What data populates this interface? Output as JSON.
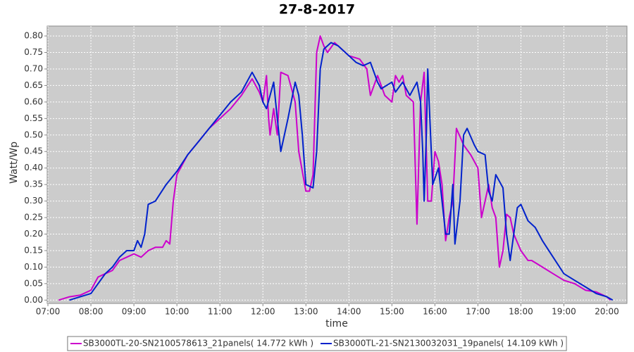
{
  "chart_data": {
    "type": "line",
    "title": "27-8-2017",
    "x_label": "time",
    "y_label": "Watt/Wp",
    "xlim": [
      419,
      1228
    ],
    "ylim": [
      -0.01,
      0.83
    ],
    "grid": true,
    "legend": "bottom",
    "background": "#cccccc",
    "xticks": [
      {
        "value": 420,
        "label": "07:00"
      },
      {
        "value": 480,
        "label": "08:00"
      },
      {
        "value": 540,
        "label": "09:00"
      },
      {
        "value": 600,
        "label": "10:00"
      },
      {
        "value": 660,
        "label": "11:00"
      },
      {
        "value": 720,
        "label": "12:00"
      },
      {
        "value": 780,
        "label": "13:00"
      },
      {
        "value": 840,
        "label": "14:00"
      },
      {
        "value": 900,
        "label": "15:00"
      },
      {
        "value": 960,
        "label": "16:00"
      },
      {
        "value": 1020,
        "label": "17:00"
      },
      {
        "value": 1080,
        "label": "18:00"
      },
      {
        "value": 1140,
        "label": "19:00"
      },
      {
        "value": 1200,
        "label": "20:00"
      }
    ],
    "yticks": [
      {
        "value": 0,
        "label": "0.00"
      },
      0.05,
      {
        "value": 0.1,
        "label": "0.10"
      },
      0.15,
      {
        "value": 0.2,
        "label": "0.20"
      },
      0.25,
      {
        "value": 0.3,
        "label": "0.30"
      },
      0.35,
      {
        "value": 0.4,
        "label": "0.40"
      },
      0.45,
      {
        "value": 0.5,
        "label": "0.50"
      },
      0.55,
      {
        "value": 0.6,
        "label": "0.60"
      },
      0.65,
      {
        "value": 0.7,
        "label": "0.70"
      },
      0.75,
      {
        "value": 0.8,
        "label": "0.80"
      }
    ],
    "series": [
      {
        "name": "SB3000TL-20-SN2100578613_21panels( 14.772 kWh )",
        "color": "#cc00cc",
        "x": [
          435,
          450,
          465,
          480,
          490,
          500,
          510,
          520,
          530,
          540,
          550,
          560,
          570,
          580,
          585,
          590,
          595,
          600,
          615,
          630,
          645,
          660,
          675,
          690,
          705,
          715,
          720,
          725,
          728,
          730,
          735,
          740,
          745,
          755,
          765,
          770,
          780,
          785,
          790,
          795,
          800,
          805,
          810,
          820,
          825,
          840,
          855,
          865,
          870,
          880,
          890,
          900,
          905,
          910,
          915,
          920,
          930,
          935,
          940,
          945,
          950,
          955,
          960,
          965,
          970,
          975,
          980,
          985,
          990,
          1000,
          1010,
          1020,
          1025,
          1030,
          1035,
          1040,
          1045,
          1050,
          1055,
          1060,
          1065,
          1070,
          1080,
          1090,
          1095,
          1110,
          1125,
          1140,
          1155,
          1170,
          1185,
          1200,
          1205
        ],
        "values": [
          0,
          0.01,
          0.015,
          0.03,
          0.07,
          0.08,
          0.09,
          0.12,
          0.13,
          0.14,
          0.13,
          0.15,
          0.16,
          0.16,
          0.18,
          0.17,
          0.3,
          0.38,
          0.44,
          0.48,
          0.52,
          0.55,
          0.58,
          0.62,
          0.67,
          0.63,
          0.6,
          0.68,
          0.55,
          0.5,
          0.58,
          0.5,
          0.69,
          0.68,
          0.6,
          0.45,
          0.33,
          0.33,
          0.38,
          0.75,
          0.8,
          0.77,
          0.75,
          0.78,
          0.77,
          0.74,
          0.73,
          0.7,
          0.62,
          0.68,
          0.62,
          0.6,
          0.68,
          0.66,
          0.68,
          0.62,
          0.6,
          0.23,
          0.6,
          0.69,
          0.3,
          0.3,
          0.45,
          0.42,
          0.35,
          0.18,
          0.25,
          0.3,
          0.52,
          0.47,
          0.44,
          0.4,
          0.25,
          0.3,
          0.35,
          0.28,
          0.25,
          0.1,
          0.15,
          0.26,
          0.25,
          0.2,
          0.15,
          0.12,
          0.12,
          0.1,
          0.08,
          0.06,
          0.05,
          0.03,
          0.025,
          0.01,
          0
        ]
      },
      {
        "name": "SB3000TL-21-SN2130032031_19panels( 14.109 kWh )",
        "color": "#0022cc",
        "x": [
          450,
          465,
          480,
          490,
          500,
          510,
          520,
          530,
          540,
          545,
          550,
          555,
          560,
          570,
          585,
          600,
          615,
          630,
          645,
          660,
          675,
          690,
          705,
          715,
          720,
          725,
          735,
          740,
          745,
          750,
          755,
          765,
          770,
          775,
          780,
          790,
          795,
          800,
          805,
          815,
          825,
          840,
          850,
          860,
          870,
          880,
          885,
          900,
          905,
          915,
          925,
          935,
          940,
          943,
          945,
          948,
          950,
          953,
          957,
          965,
          970,
          975,
          980,
          985,
          988,
          995,
          1000,
          1005,
          1015,
          1020,
          1030,
          1035,
          1040,
          1045,
          1055,
          1060,
          1065,
          1070,
          1075,
          1080,
          1090,
          1100,
          1110,
          1125,
          1140,
          1155,
          1170,
          1185,
          1200,
          1208
        ],
        "values": [
          0,
          0.01,
          0.02,
          0.05,
          0.08,
          0.1,
          0.13,
          0.15,
          0.15,
          0.18,
          0.16,
          0.2,
          0.29,
          0.3,
          0.35,
          0.39,
          0.44,
          0.48,
          0.52,
          0.56,
          0.6,
          0.63,
          0.69,
          0.65,
          0.6,
          0.58,
          0.66,
          0.55,
          0.45,
          0.5,
          0.55,
          0.66,
          0.62,
          0.5,
          0.35,
          0.34,
          0.45,
          0.7,
          0.76,
          0.78,
          0.77,
          0.74,
          0.72,
          0.71,
          0.72,
          0.66,
          0.64,
          0.66,
          0.63,
          0.66,
          0.62,
          0.66,
          0.6,
          0.45,
          0.3,
          0.5,
          0.7,
          0.55,
          0.35,
          0.4,
          0.3,
          0.2,
          0.2,
          0.35,
          0.17,
          0.3,
          0.5,
          0.52,
          0.47,
          0.45,
          0.44,
          0.33,
          0.3,
          0.38,
          0.34,
          0.2,
          0.12,
          0.2,
          0.28,
          0.29,
          0.24,
          0.22,
          0.18,
          0.13,
          0.08,
          0.06,
          0.04,
          0.02,
          0.01,
          0
        ]
      }
    ]
  }
}
